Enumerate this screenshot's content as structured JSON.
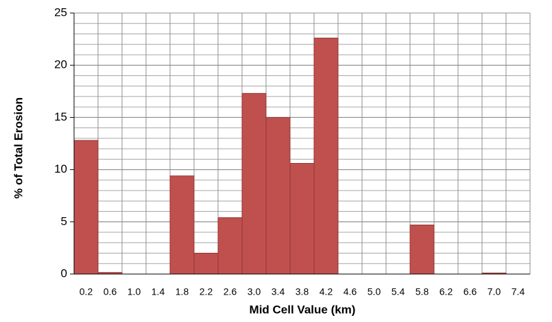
{
  "chart_data": {
    "type": "bar",
    "x_label": "Mid Cell Value (km)",
    "y_label": "% of Total Erosion",
    "categories": [
      "0.2",
      "0.6",
      "1.0",
      "1.4",
      "1.8",
      "2.2",
      "2.6",
      "3.0",
      "3.4",
      "3.8",
      "4.2",
      "4.6",
      "5.0",
      "5.4",
      "5.8",
      "6.2",
      "6.6",
      "7.0",
      "7.4"
    ],
    "values": [
      12.8,
      0.15,
      0,
      0,
      9.4,
      2.0,
      5.4,
      17.3,
      15.0,
      10.6,
      22.6,
      0,
      0,
      0,
      4.7,
      0,
      0,
      0.1,
      0
    ],
    "color": "#c0504d",
    "ylim": [
      0,
      25
    ],
    "yticks": [
      0,
      5,
      10,
      15,
      20,
      25
    ],
    "grid": true,
    "minor_grid_step": 1
  }
}
